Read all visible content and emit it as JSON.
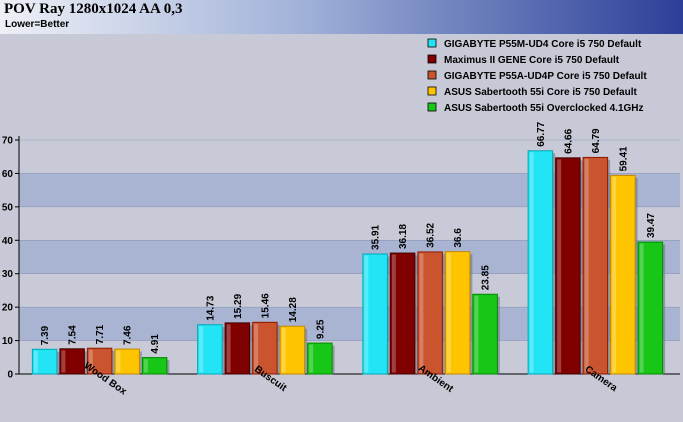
{
  "chart_data": {
    "type": "bar",
    "title": "POV Ray 1280x1024 AA 0,3",
    "subtitle": "Lower=Better",
    "categories": [
      "Wood Box",
      "Buscuit",
      "Ambient",
      "Camera"
    ],
    "ylim": [
      0,
      70
    ],
    "yticks": [
      0,
      10,
      20,
      30,
      40,
      50,
      60,
      70
    ],
    "legend_position": "top-right",
    "series": [
      {
        "name": "GIGABYTE P55M-UD4 Core i5 750 Default",
        "color": "#22e4f4",
        "values": [
          7.39,
          14.73,
          35.91,
          66.77
        ]
      },
      {
        "name": "Maximus II GENE Core i5 750 Default",
        "color": "#800000",
        "values": [
          7.54,
          15.29,
          36.18,
          64.66
        ]
      },
      {
        "name": "GIGABYTE P55A-UD4P Core i5 750 Default",
        "color": "#c9542e",
        "values": [
          7.71,
          15.46,
          36.52,
          64.79
        ]
      },
      {
        "name": "ASUS Sabertooth 55i Core i5 750 Default",
        "color": "#ffc400",
        "values": [
          7.46,
          14.28,
          36.6,
          59.41
        ]
      },
      {
        "name": "ASUS Sabertooth 55i Overclocked 4.1GHz",
        "color": "#17c617",
        "values": [
          4.91,
          9.25,
          23.85,
          39.47
        ]
      }
    ]
  }
}
